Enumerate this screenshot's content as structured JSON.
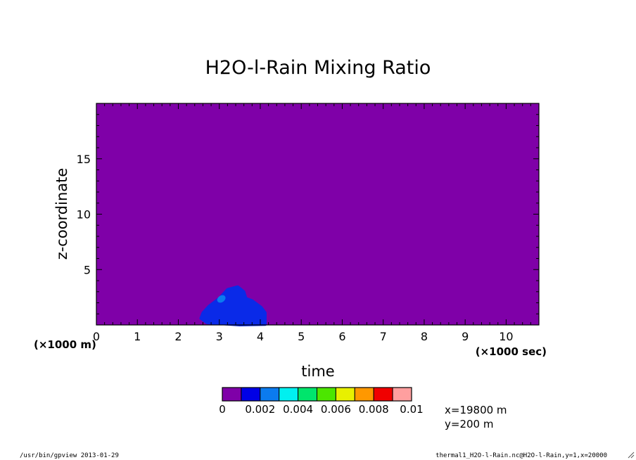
{
  "chart_data": {
    "type": "heatmap",
    "title": "H2O-l-Rain Mixing Ratio",
    "xlabel": "time",
    "ylabel": "z-coordinate",
    "x_unit": "(×1000 sec)",
    "y_unit": "(×1000 m)",
    "xlim": [
      0,
      10.8
    ],
    "ylim": [
      0,
      20
    ],
    "x_ticks": [
      0,
      1,
      2,
      3,
      4,
      5,
      6,
      7,
      8,
      9,
      10
    ],
    "y_ticks": [
      5,
      10,
      15
    ],
    "background_level": 0,
    "background_color": "#7f00a8",
    "colorbar": {
      "levels": [
        "0",
        "0.002",
        "0.004",
        "0.006",
        "0.008",
        "0.01"
      ],
      "colors": [
        "#7f00a8",
        "#0000e6",
        "#0b7bef",
        "#00f0f0",
        "#00e56c",
        "#4ce600",
        "#e8f000",
        "#ff9800",
        "#f00000",
        "#ff9f9f"
      ]
    },
    "features": [
      {
        "level_range": [
          0,
          0.002
        ],
        "color": "#0a2ae8",
        "outline_time": [
          2.6,
          2.75,
          3.0,
          3.2,
          3.45,
          3.6,
          3.65,
          3.8,
          4.02,
          4.12,
          4.12,
          3.5,
          2.7,
          2.55
        ],
        "outline_z": [
          1.1,
          1.7,
          2.4,
          3.2,
          3.45,
          3.0,
          2.4,
          2.2,
          1.6,
          1.1,
          0.05,
          0.0,
          0.2,
          0.6
        ]
      },
      {
        "level_range": [
          0.002,
          0.004
        ],
        "color": "#0b7bef",
        "center": [
          3.05,
          2.35
        ],
        "size": [
          0.22,
          0.6
        ]
      }
    ]
  },
  "info": {
    "x_value": "x=19800  m",
    "y_value": "y=200  m"
  },
  "footer": {
    "left": "/usr/bin/gpview  2013-01-29",
    "right": "thermal1_H2O-l-Rain.nc@H2O-l-Rain,y=1,x=20000"
  }
}
